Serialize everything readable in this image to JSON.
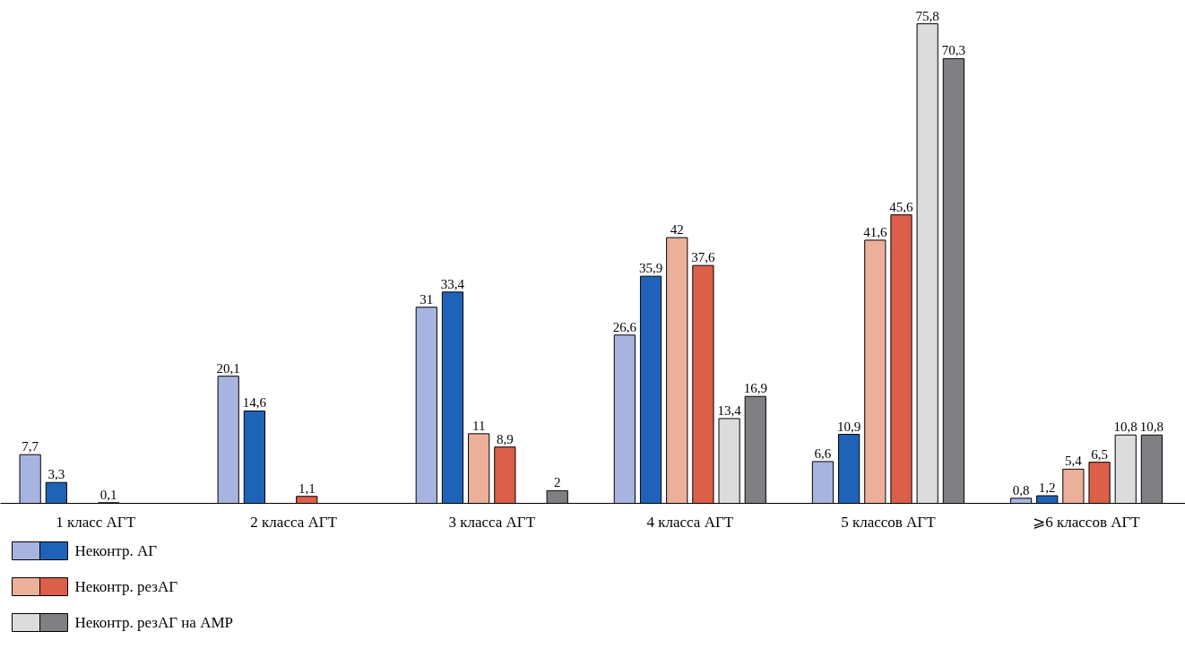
{
  "chart_data": {
    "type": "bar",
    "categories": [
      "1 класс АГТ",
      "2 класса АГТ",
      "3 класса АГТ",
      "4 класса АГТ",
      "5 классов АГТ",
      "⩾6 классов АГТ"
    ],
    "tick_labels": "x",
    "legend": "bottom",
    "grid": false,
    "series": [
      {
        "name": "Неконтр. АГ",
        "color": "#a8b4e0",
        "values": [
          7.7,
          20.1,
          31,
          26.6,
          6.6,
          0.8
        ],
        "value_labels": [
          "7,7",
          "20,1",
          "31",
          "26,6",
          "6,6",
          "0,8"
        ]
      },
      {
        "color": "#1f63b8",
        "values": [
          3.3,
          14.6,
          33.4,
          35.9,
          10.9,
          1.2
        ],
        "value_labels": [
          "3,3",
          "14,6",
          "33,4",
          "35,9",
          "10,9",
          "1,2"
        ]
      },
      {
        "name": "Неконтр. резАГ",
        "color": "#ecb09a",
        "values": [
          null,
          null,
          11,
          42,
          41.6,
          5.4
        ],
        "value_labels": [
          null,
          null,
          "11",
          "42",
          "41,6",
          "5,4"
        ]
      },
      {
        "color": "#dc5f4a",
        "values": [
          0.1,
          1.1,
          8.9,
          37.6,
          45.6,
          6.5
        ],
        "value_labels": [
          "0,1",
          "1,1",
          "8,9",
          "37,6",
          "45,6",
          "6,5"
        ]
      },
      {
        "name": "Неконтр. резАГ на АМР",
        "color": "#dcdcdc",
        "values": [
          null,
          null,
          null,
          13.4,
          75.8,
          10.8
        ],
        "value_labels": [
          null,
          null,
          null,
          "13,4",
          "75,8",
          "10,8"
        ]
      },
      {
        "color": "#808084",
        "values": [
          null,
          null,
          2,
          16.9,
          70.3,
          10.8
        ],
        "value_labels": [
          null,
          null,
          "2",
          "16,9",
          "70,3",
          "10,8"
        ]
      }
    ]
  }
}
